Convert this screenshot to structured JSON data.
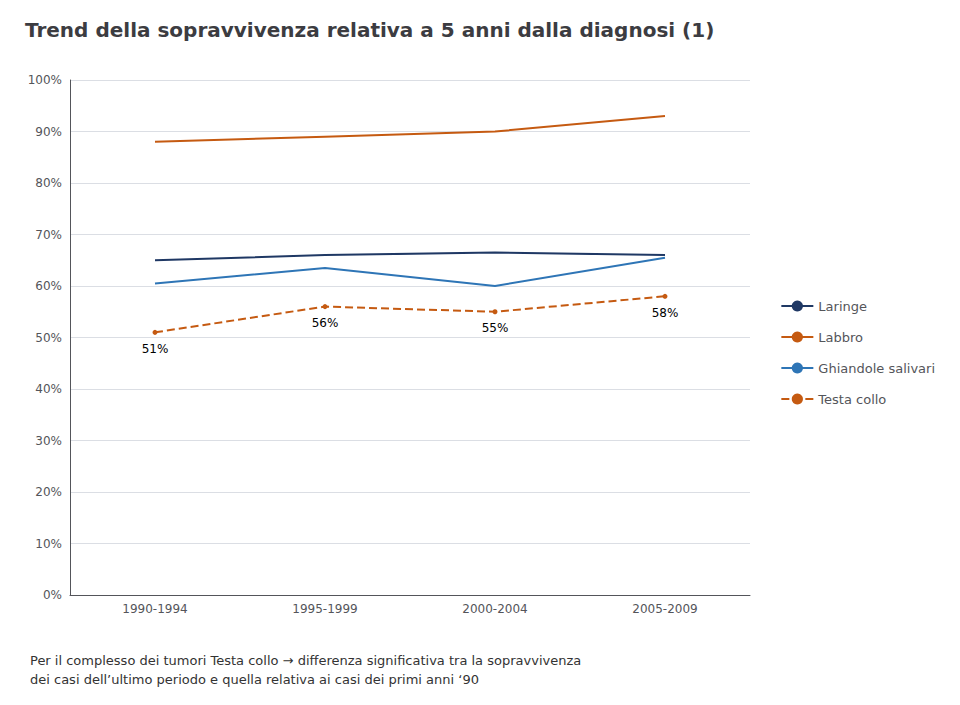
{
  "chart_data": {
    "type": "line",
    "title": "Trend della sopravvivenza relativa a 5 anni dalla diagnosi (1)",
    "categories": [
      "1990-1994",
      "1995-1999",
      "2000-2004",
      "2005-2009"
    ],
    "series": [
      {
        "name": "Laringe",
        "color": "#1F3864",
        "line_style": "solid",
        "values": [
          65,
          66,
          66.5,
          66
        ]
      },
      {
        "name": "Labbro",
        "color": "#C55A11",
        "line_style": "solid",
        "values": [
          88,
          89,
          90,
          93
        ]
      },
      {
        "name": "Ghiandole salivari",
        "color": "#2E75B6",
        "line_style": "solid",
        "values": [
          60.5,
          63.5,
          60,
          65.5
        ]
      },
      {
        "name": "Testa collo",
        "color": "#C55A11",
        "line_style": "dashed",
        "values": [
          51,
          56,
          55,
          58
        ],
        "data_labels": true,
        "value_labels": [
          "51%",
          "56%",
          "55%",
          "58%"
        ]
      }
    ],
    "ylim": [
      0,
      100
    ],
    "yticks": [
      {
        "value": 0,
        "label": "0%"
      },
      {
        "value": 10,
        "label": "10%"
      },
      {
        "value": 20,
        "label": "20%"
      },
      {
        "value": 30,
        "label": "30%"
      },
      {
        "value": 40,
        "label": "40%"
      },
      {
        "value": 50,
        "label": "50%"
      },
      {
        "value": 60,
        "label": "60%"
      },
      {
        "value": 70,
        "label": "70%"
      },
      {
        "value": 80,
        "label": "80%"
      },
      {
        "value": 90,
        "label": "90%"
      },
      {
        "value": 100,
        "label": "100%"
      }
    ],
    "grid": true,
    "legend": "right",
    "footer": "Per il complesso dei tumori Testa collo → differenza significativa tra la sopravvivenza\ndei casi dell’ultimo periodo e quella relativa ai casi dei primi anni ‘90"
  }
}
